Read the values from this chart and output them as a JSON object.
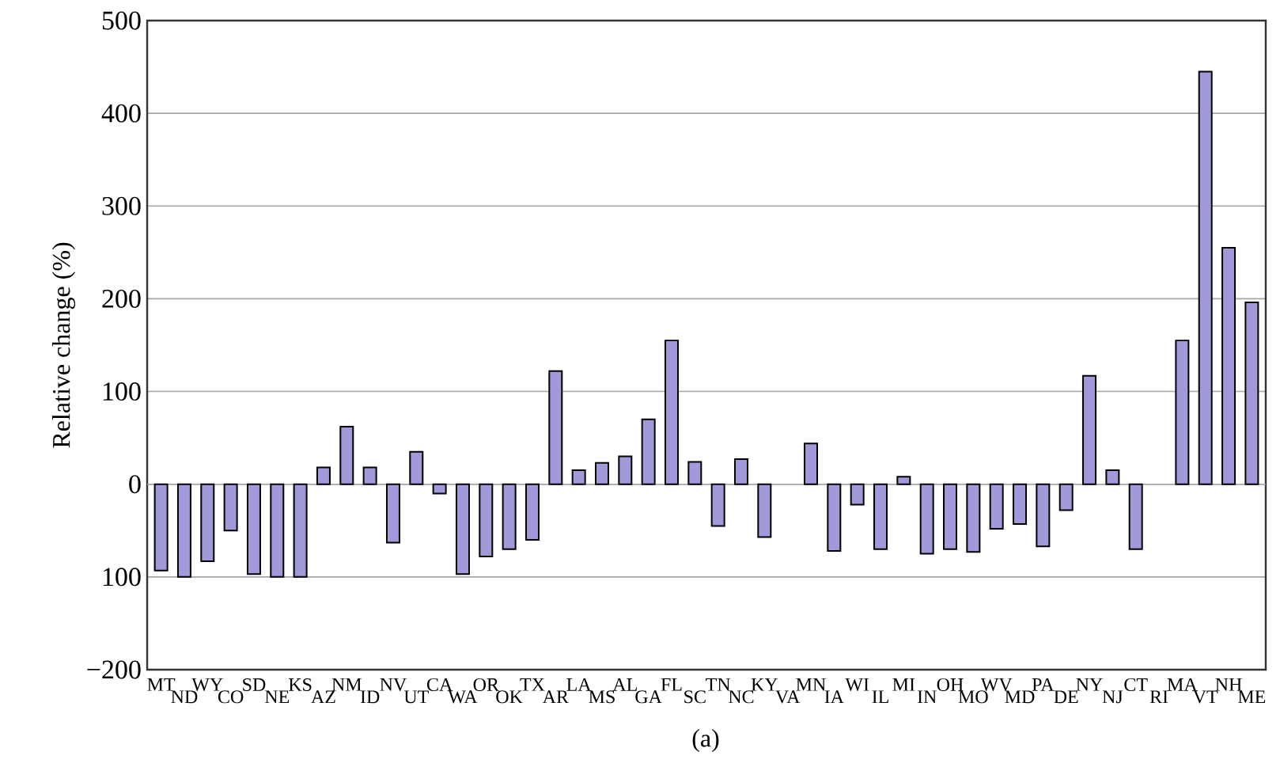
{
  "chart_data": {
    "type": "bar",
    "ylabel": "Relative change (%)",
    "categories": [
      "MT",
      "ND",
      "WY",
      "CO",
      "SD",
      "NE",
      "KS",
      "AZ",
      "NM",
      "ID",
      "NV",
      "UT",
      "CA",
      "WA",
      "OR",
      "OK",
      "TX",
      "AR",
      "LA",
      "MS",
      "AL",
      "GA",
      "FL",
      "SC",
      "TN",
      "NC",
      "KY",
      "VA",
      "MN",
      "IA",
      "WI",
      "IL",
      "MI",
      "IN",
      "OH",
      "MO",
      "WV",
      "MD",
      "PA",
      "DE",
      "NY",
      "NJ",
      "CT",
      "RI",
      "MA",
      "VT",
      "NH",
      "ME"
    ],
    "values": [
      -93,
      -100,
      -83,
      -50,
      -97,
      -100,
      -100,
      18,
      62,
      18,
      -63,
      35,
      -10,
      -97,
      -78,
      -70,
      -60,
      122,
      15,
      23,
      30,
      70,
      155,
      24,
      -45,
      27,
      -57,
      null,
      44,
      -72,
      -22,
      -70,
      8,
      -75,
      -70,
      -73,
      -48,
      -43,
      -67,
      -28,
      117,
      15,
      -70,
      null,
      155,
      445,
      255,
      196
    ],
    "color": "#a09ad8",
    "ylim": [
      -200,
      500
    ],
    "yticks": [
      {
        "value": -200,
        "label": "−200"
      },
      {
        "value": -100,
        "label": "100"
      },
      0,
      100,
      200,
      300,
      400,
      500
    ],
    "grid": "y",
    "annotations": [
      "(a)"
    ]
  }
}
